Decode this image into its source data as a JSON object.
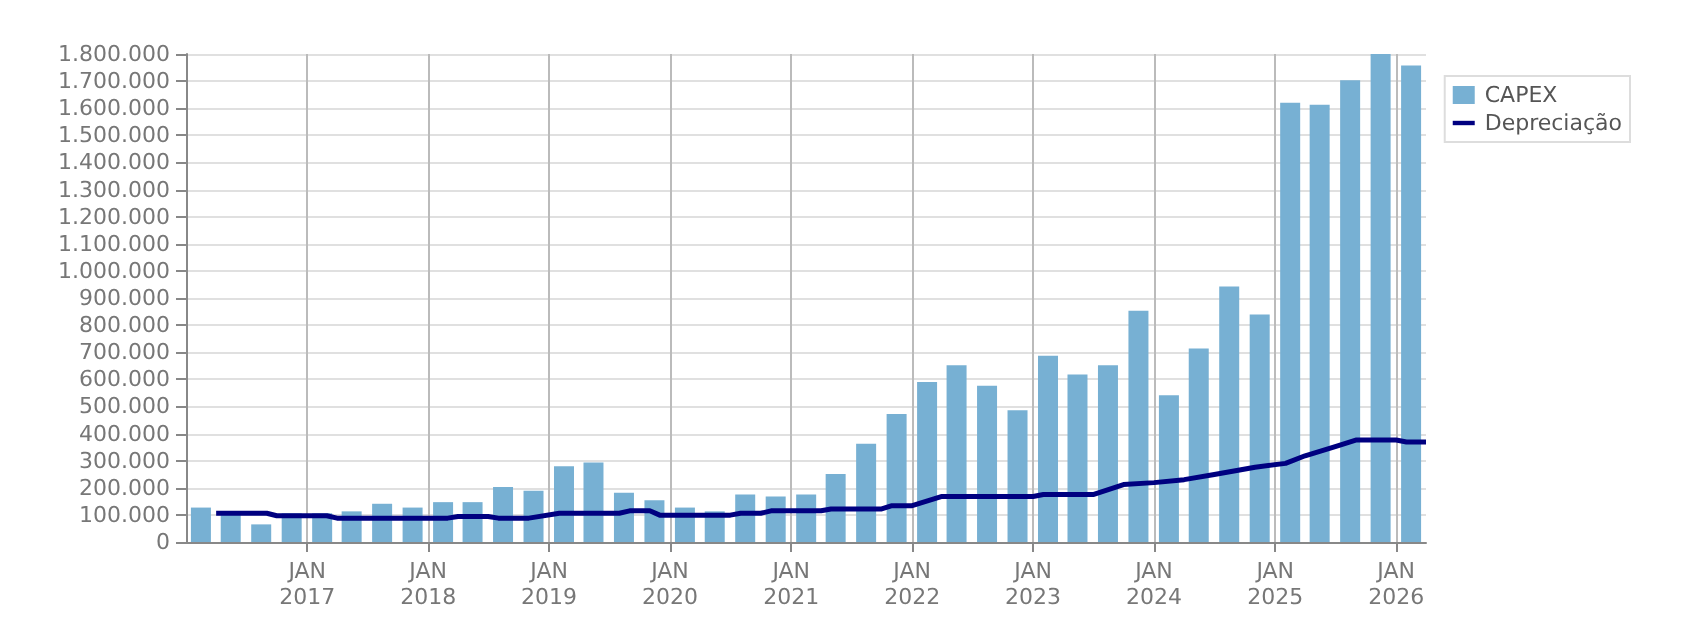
{
  "chart_data": {
    "type": "bar",
    "x": [
      "2016-02-15",
      "2016-05-15",
      "2016-08-15",
      "2016-11-15",
      "2017-02-15",
      "2017-05-15",
      "2017-08-15",
      "2017-11-15",
      "2018-02-15",
      "2018-05-15",
      "2018-08-15",
      "2018-11-15",
      "2019-02-15",
      "2019-05-15",
      "2019-08-15",
      "2019-11-15",
      "2020-02-15",
      "2020-05-15",
      "2020-08-15",
      "2020-11-15",
      "2021-02-15",
      "2021-05-15",
      "2021-08-15",
      "2021-11-15",
      "2022-02-15",
      "2022-05-15",
      "2022-08-15",
      "2022-11-15",
      "2023-02-15",
      "2023-05-15",
      "2023-08-15",
      "2023-11-15",
      "2024-02-15",
      "2024-05-15",
      "2024-08-15",
      "2024-11-15",
      "2025-02-15",
      "2025-05-15",
      "2025-08-15",
      "2025-11-15",
      "2026-02-15"
    ],
    "series": [
      {
        "name": "CAPEX",
        "color": "#77b0d3",
        "values": [
          127000,
          110000,
          65000,
          106000,
          106000,
          113000,
          141000,
          127000,
          147000,
          147000,
          203000,
          189000,
          279000,
          293000,
          182000,
          154000,
          127000,
          113000,
          175000,
          168000,
          175000,
          251000,
          362000,
          472000,
          590000,
          652000,
          576000,
          486000,
          687000,
          618000,
          652000,
          853000,
          541000,
          714000,
          942000,
          839000,
          1620000,
          1613000,
          1703000,
          1800000,
          1758000
        ]
      },
      {
        "name": "Depreciação",
        "type": "line",
        "color": "#000080",
        "x": [
          "2016-04",
          "2016-09",
          "2016-10",
          "2017-03",
          "2017-04",
          "2018-03",
          "2018-04",
          "2018-07",
          "2018-08",
          "2018-11",
          "2019-02",
          "2019-08",
          "2019-09",
          "2019-11",
          "2019-12",
          "2020-07",
          "2020-08",
          "2020-10",
          "2020-11",
          "2021-04",
          "2021-05",
          "2021-10",
          "2021-11",
          "2022-01",
          "2022-04",
          "2023-01",
          "2023-02",
          "2023-07",
          "2023-10",
          "2024-01",
          "2024-04",
          "2024-07",
          "2024-11",
          "2025-02",
          "2025-04",
          "2025-07",
          "2025-09",
          "2026-01",
          "2026-02",
          "2026-04"
        ],
        "values": [
          106000,
          106000,
          97000,
          97000,
          88000,
          88000,
          94000,
          94000,
          88000,
          88000,
          106000,
          106000,
          115000,
          115000,
          99000,
          99000,
          106000,
          106000,
          115000,
          115000,
          122000,
          122000,
          134000,
          134000,
          168000,
          168000,
          175000,
          175000,
          212000,
          219000,
          230000,
          249000,
          276000,
          290000,
          318000,
          352000,
          376000,
          376000,
          369000,
          369000
        ]
      }
    ],
    "xlim": [
      "2016-01",
      "2026-04"
    ],
    "xticks": [
      {
        "value": "2017-01",
        "label": "JAN\n2017"
      },
      {
        "value": "2018-01",
        "label": "JAN\n2018"
      },
      {
        "value": "2019-01",
        "label": "JAN\n2019"
      },
      {
        "value": "2020-01",
        "label": "JAN\n2020"
      },
      {
        "value": "2021-01",
        "label": "JAN\n2021"
      },
      {
        "value": "2022-01",
        "label": "JAN\n2022"
      },
      {
        "value": "2023-01",
        "label": "JAN\n2023"
      },
      {
        "value": "2024-01",
        "label": "JAN\n2024"
      },
      {
        "value": "2025-01",
        "label": "JAN\n2025"
      },
      {
        "value": "2026-01",
        "label": "JAN\n2026"
      }
    ],
    "ylim": [
      0,
      1800000
    ],
    "yticks": [
      0,
      {
        "value": 100000,
        "label": "100.000"
      },
      {
        "value": 200000,
        "label": "200.000"
      },
      {
        "value": 300000,
        "label": "300.000"
      },
      {
        "value": 400000,
        "label": "400.000"
      },
      {
        "value": 500000,
        "label": "500.000"
      },
      {
        "value": 600000,
        "label": "600.000"
      },
      {
        "value": 700000,
        "label": "700.000"
      },
      {
        "value": 800000,
        "label": "800.000"
      },
      {
        "value": 900000,
        "label": "900.000"
      },
      {
        "value": 1000000,
        "label": "1.000.000"
      },
      {
        "value": 1100000,
        "label": "1.100.000"
      },
      {
        "value": 1200000,
        "label": "1.200.000"
      },
      {
        "value": 1300000,
        "label": "1.300.000"
      },
      {
        "value": 1400000,
        "label": "1.400.000"
      },
      {
        "value": 1500000,
        "label": "1.500.000"
      },
      {
        "value": 1600000,
        "label": "1.600.000"
      },
      {
        "value": 1700000,
        "label": "1.700.000"
      },
      {
        "value": 1800000,
        "label": "1.800.000"
      }
    ],
    "grid": true,
    "legend": "top right",
    "marker": "none",
    "line_style": "solid"
  }
}
